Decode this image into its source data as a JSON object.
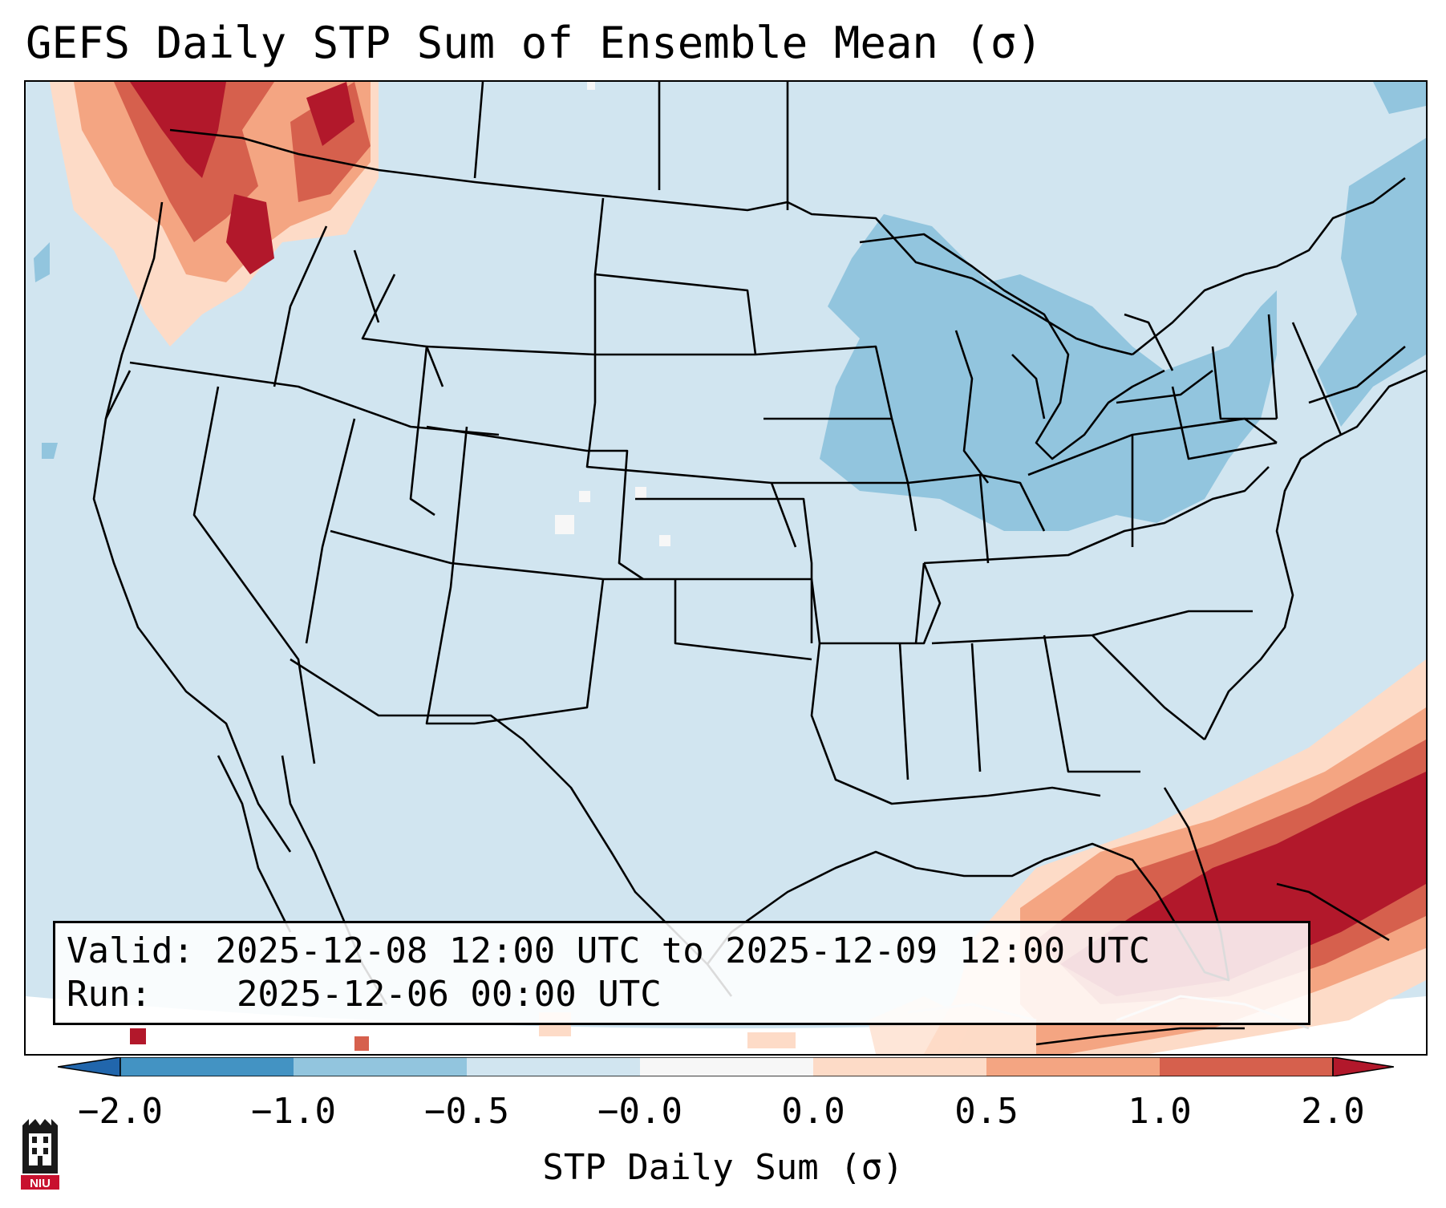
{
  "title": "GEFS Daily STP Sum of Ensemble Mean (σ)",
  "info": {
    "valid_label": "Valid:",
    "valid_value": "2025-12-08 12:00 UTC to 2025-12-09 12:00 UTC",
    "run_label": "Run:",
    "run_value": "2025-12-06 00:00 UTC"
  },
  "colorbar": {
    "label": "STP Daily Sum (σ)",
    "ticks": [
      "−2.0",
      "−1.0",
      "−0.5",
      "−0.0",
      "0.0",
      "0.5",
      "1.0",
      "2.0"
    ],
    "colors": {
      "extend_low": "#2166ac",
      "bin_neg2_neg1": "#4393c3",
      "bin_neg1_neg05": "#92c5de",
      "bin_neg05_0": "#d1e5f0",
      "bin_zero": "#f7f7f7",
      "bin_0_05": "#fddbc7",
      "bin_05_1": "#f4a582",
      "bin_1_2": "#d6604d",
      "extend_high": "#b2182b"
    }
  },
  "logo": {
    "text": "NIU",
    "color": "#c8102e"
  }
}
